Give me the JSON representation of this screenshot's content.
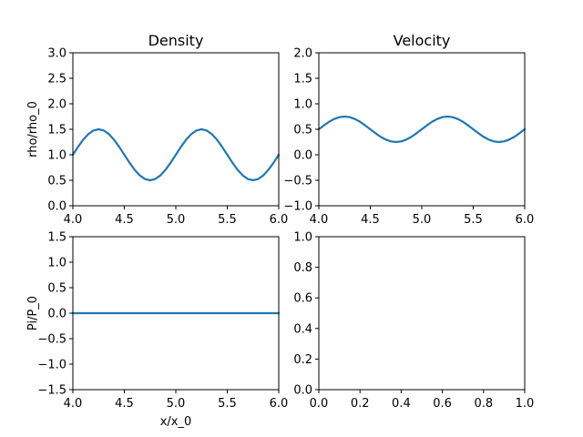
{
  "colors": {
    "series": "#1f77b4"
  },
  "chart_data": [
    {
      "type": "line",
      "title": "Density",
      "xlabel": "",
      "ylabel": "rho/rho_0",
      "xlim": [
        4.0,
        6.0
      ],
      "ylim": [
        0.0,
        3.0
      ],
      "xticks": [
        "4.0",
        "4.5",
        "5.0",
        "5.5",
        "6.0"
      ],
      "yticks": [
        "0.0",
        "0.5",
        "1.0",
        "1.5",
        "2.0",
        "2.5",
        "3.0"
      ],
      "grid": false,
      "series": [
        {
          "x": [
            4.0,
            4.05,
            4.1,
            4.15,
            4.2,
            4.25,
            4.3,
            4.35,
            4.4,
            4.45,
            4.5,
            4.55,
            4.6,
            4.65,
            4.7,
            4.75,
            4.8,
            4.85,
            4.9,
            4.95,
            5.0,
            5.05,
            5.1,
            5.15,
            5.2,
            5.25,
            5.3,
            5.35,
            5.4,
            5.45,
            5.5,
            5.55,
            5.6,
            5.65,
            5.7,
            5.75,
            5.8,
            5.85,
            5.9,
            5.95,
            6.0
          ],
          "y": [
            1.0,
            1.155,
            1.294,
            1.405,
            1.476,
            1.5,
            1.476,
            1.405,
            1.294,
            1.155,
            1.0,
            0.845,
            0.706,
            0.595,
            0.524,
            0.5,
            0.524,
            0.595,
            0.706,
            0.845,
            1.0,
            1.155,
            1.294,
            1.405,
            1.476,
            1.5,
            1.476,
            1.405,
            1.294,
            1.155,
            1.0,
            0.845,
            0.706,
            0.595,
            0.524,
            0.5,
            0.524,
            0.595,
            0.706,
            0.845,
            1.0
          ]
        }
      ]
    },
    {
      "type": "line",
      "title": "Velocity",
      "xlabel": "",
      "ylabel": "",
      "xlim": [
        4.0,
        6.0
      ],
      "ylim": [
        -1.0,
        2.0
      ],
      "xticks": [
        "4.0",
        "4.5",
        "5.0",
        "5.5",
        "6.0"
      ],
      "yticks": [
        "−1.0",
        "−0.5",
        "0.0",
        "0.5",
        "1.0",
        "1.5",
        "2.0"
      ],
      "grid": false,
      "series": [
        {
          "x": [
            4.0,
            4.05,
            4.1,
            4.15,
            4.2,
            4.25,
            4.3,
            4.35,
            4.4,
            4.45,
            4.5,
            4.55,
            4.6,
            4.65,
            4.7,
            4.75,
            4.8,
            4.85,
            4.9,
            4.95,
            5.0,
            5.05,
            5.1,
            5.15,
            5.2,
            5.25,
            5.3,
            5.35,
            5.4,
            5.45,
            5.5,
            5.55,
            5.6,
            5.65,
            5.7,
            5.75,
            5.8,
            5.85,
            5.9,
            5.95,
            6.0
          ],
          "y": [
            0.5,
            0.577,
            0.647,
            0.702,
            0.738,
            0.75,
            0.738,
            0.702,
            0.647,
            0.577,
            0.5,
            0.423,
            0.353,
            0.298,
            0.262,
            0.25,
            0.262,
            0.298,
            0.353,
            0.423,
            0.5,
            0.577,
            0.647,
            0.702,
            0.738,
            0.75,
            0.738,
            0.702,
            0.647,
            0.577,
            0.5,
            0.423,
            0.353,
            0.298,
            0.262,
            0.25,
            0.262,
            0.298,
            0.353,
            0.423,
            0.5
          ]
        }
      ]
    },
    {
      "type": "line",
      "title": "",
      "xlabel": "x/x_0",
      "ylabel": "Pi/P_0",
      "xlim": [
        4.0,
        6.0
      ],
      "ylim": [
        -1.5,
        1.5
      ],
      "xticks": [
        "4.0",
        "4.5",
        "5.0",
        "5.5",
        "6.0"
      ],
      "yticks": [
        "−1.5",
        "−1.0",
        "−0.5",
        "0.0",
        "0.5",
        "1.0",
        "1.5"
      ],
      "grid": false,
      "series": [
        {
          "x": [
            4.0,
            6.0
          ],
          "y": [
            0.0,
            0.0
          ]
        }
      ]
    },
    {
      "type": "line",
      "title": "",
      "xlabel": "",
      "ylabel": "",
      "xlim": [
        0.0,
        1.0
      ],
      "ylim": [
        0.0,
        1.0
      ],
      "xticks": [
        "0.0",
        "0.2",
        "0.4",
        "0.6",
        "0.8",
        "1.0"
      ],
      "yticks": [
        "0.0",
        "0.2",
        "0.4",
        "0.6",
        "0.8",
        "1.0"
      ],
      "grid": false,
      "series": []
    }
  ]
}
